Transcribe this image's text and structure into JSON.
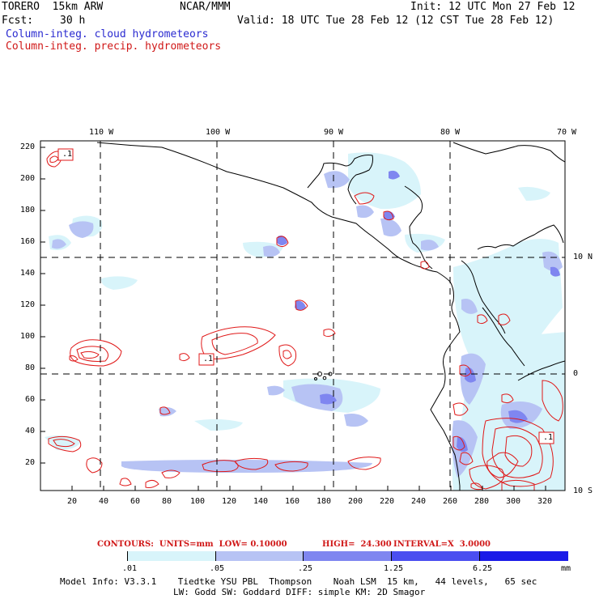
{
  "header": {
    "model": "TORERO  15km ARW",
    "org": "NCAR/MMM",
    "init": "Init: 12 UTC Mon 27 Feb 12",
    "fcst_label": "Fcst:",
    "fcst_value": "30 h",
    "valid": "Valid: 18 UTC Tue 28 Feb 12 (12 CST Tue 28 Feb 12)"
  },
  "legend": {
    "cloud": "Column-integ. cloud hydrometeors",
    "precip": "Column-integ. precip. hydrometeors"
  },
  "axes": {
    "top_lon": [
      "110 W",
      "100 W",
      "90 W",
      "80 W",
      "70 W"
    ],
    "right_lat": [
      "10 N",
      "0",
      "10 S"
    ],
    "left_y": [
      "220",
      "200",
      "180",
      "160",
      "140",
      "120",
      "100",
      "80",
      "60",
      "40",
      "20"
    ],
    "bottom_x": [
      "20",
      "40",
      "60",
      "80",
      "100",
      "120",
      "140",
      "160",
      "180",
      "200",
      "220",
      "240",
      "260",
      "280",
      "300",
      "320"
    ]
  },
  "contour_labels": [
    ".1",
    ".1",
    ".1"
  ],
  "contours_info": {
    "units_label": "CONTOURS:  UNITS=mm  LOW= 0.10000",
    "high_label": "HIGH=  24.300",
    "interval_label": "INTERVAL=X  3.0000"
  },
  "colorbar": {
    "labels": [
      ".01",
      ".05",
      ".25",
      "1.25",
      "6.25",
      "mm"
    ],
    "colors": [
      "#ffffff",
      "#d8f4fa",
      "#b7c3f4",
      "#7f86f0",
      "#4a4ef0",
      "#1b1be8"
    ]
  },
  "footer": {
    "line1": "Model Info: V3.3.1    Tiedtke YSU PBL  Thompson    Noah LSM  15 km,   44 levels,   65 sec",
    "line2": "LW: Godd SW: Goddard DIFF: simple KM: 2D Smagor"
  },
  "colors": {
    "cloud_text": "#2a2ad0",
    "precip_text": "#d01818",
    "contour": "#e01818"
  }
}
